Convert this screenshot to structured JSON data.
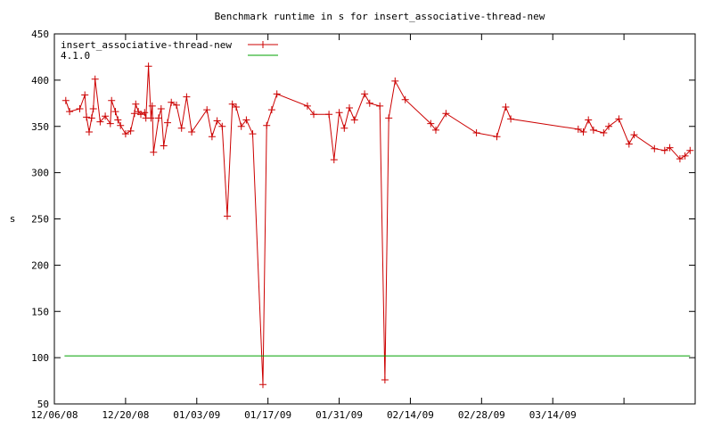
{
  "chart_data": {
    "type": "line",
    "title": "Benchmark runtime in s for insert_associative-thread-new",
    "xlabel": "",
    "ylabel": "s",
    "ylim": [
      50,
      450
    ],
    "yticks": [
      50,
      100,
      150,
      200,
      250,
      300,
      350,
      400,
      450
    ],
    "xlim": [
      "2008-12-06",
      "2009-04-11"
    ],
    "xticks": [
      {
        "date": "2008-12-06",
        "label": "12/06/08"
      },
      {
        "date": "2008-12-20",
        "label": "12/20/08"
      },
      {
        "date": "2009-01-03",
        "label": "01/03/09"
      },
      {
        "date": "2009-01-17",
        "label": "01/17/09"
      },
      {
        "date": "2009-01-31",
        "label": "01/31/09"
      },
      {
        "date": "2009-02-14",
        "label": "02/14/09"
      },
      {
        "date": "2009-02-28",
        "label": "02/28/09"
      },
      {
        "date": "2009-03-14",
        "label": "03/14/09"
      },
      {
        "date": "2009-03-28",
        "label": ""
      },
      {
        "date": "2009-04-11",
        "label": ""
      }
    ],
    "grid": false,
    "legend_position": "top-left",
    "series": [
      {
        "name": "insert_associative-thread-new",
        "color": "#cc0000",
        "marker": "plus",
        "points": [
          [
            "2008-12-08 06:00",
            378
          ],
          [
            "2008-12-09 00:00",
            366
          ],
          [
            "2008-12-11 00:00",
            369
          ],
          [
            "2008-12-12 00:00",
            384
          ],
          [
            "2008-12-12 08:00",
            360
          ],
          [
            "2008-12-12 20:00",
            344
          ],
          [
            "2008-12-13 08:00",
            359
          ],
          [
            "2008-12-13 16:00",
            369
          ],
          [
            "2008-12-14 00:00",
            401
          ],
          [
            "2008-12-15 00:00",
            355
          ],
          [
            "2008-12-16 00:00",
            361
          ],
          [
            "2008-12-17 00:00",
            353
          ],
          [
            "2008-12-17 06:00",
            378
          ],
          [
            "2008-12-18 00:00",
            366
          ],
          [
            "2008-12-18 12:00",
            357
          ],
          [
            "2008-12-19 00:00",
            351
          ],
          [
            "2008-12-20 00:00",
            342
          ],
          [
            "2008-12-21 00:00",
            345
          ],
          [
            "2008-12-21 18:00",
            364
          ],
          [
            "2008-12-22 00:00",
            374
          ],
          [
            "2008-12-22 12:00",
            366
          ],
          [
            "2008-12-23 00:00",
            363
          ],
          [
            "2008-12-23 18:00",
            365
          ],
          [
            "2008-12-24 00:00",
            359
          ],
          [
            "2008-12-24 12:00",
            415
          ],
          [
            "2008-12-25 00:00",
            359
          ],
          [
            "2008-12-25 06:00",
            372
          ],
          [
            "2008-12-25 12:00",
            322
          ],
          [
            "2008-12-26 12:00",
            359
          ],
          [
            "2008-12-27 00:00",
            369
          ],
          [
            "2008-12-27 12:00",
            329
          ],
          [
            "2008-12-28 06:00",
            354
          ],
          [
            "2008-12-29 00:00",
            376
          ],
          [
            "2008-12-30 00:00",
            373
          ],
          [
            "2008-12-31 00:00",
            348
          ],
          [
            "2009-01-01 00:00",
            382
          ],
          [
            "2009-01-02 00:00",
            344
          ],
          [
            "2009-01-05 00:00",
            368
          ],
          [
            "2009-01-06 00:00",
            339
          ],
          [
            "2009-01-07 00:00",
            356
          ],
          [
            "2009-01-08 00:00",
            350
          ],
          [
            "2009-01-09 00:00",
            253
          ],
          [
            "2009-01-10 00:00",
            374
          ],
          [
            "2009-01-10 18:00",
            371
          ],
          [
            "2009-01-11 18:00",
            350
          ],
          [
            "2009-01-12 18:00",
            357
          ],
          [
            "2009-01-14 00:00",
            342
          ],
          [
            "2009-01-16 00:00",
            71
          ],
          [
            "2009-01-16 18:00",
            351
          ],
          [
            "2009-01-17 18:00",
            368
          ],
          [
            "2009-01-18 18:00",
            385
          ],
          [
            "2009-01-24 18:00",
            372
          ],
          [
            "2009-01-26 00:00",
            363
          ],
          [
            "2009-01-29 00:00",
            363
          ],
          [
            "2009-01-30 00:00",
            314
          ],
          [
            "2009-01-31 00:00",
            365
          ],
          [
            "2009-02-01 00:00",
            348
          ],
          [
            "2009-02-02 00:00",
            370
          ],
          [
            "2009-02-03 00:00",
            357
          ],
          [
            "2009-02-05 00:00",
            385
          ],
          [
            "2009-02-06 00:00",
            375
          ],
          [
            "2009-02-08 00:00",
            372
          ],
          [
            "2009-02-09 00:00",
            76
          ],
          [
            "2009-02-09 18:00",
            359
          ],
          [
            "2009-02-11 00:00",
            399
          ],
          [
            "2009-02-13 00:00",
            379
          ],
          [
            "2009-02-18 00:00",
            353
          ],
          [
            "2009-02-19 00:00",
            346
          ],
          [
            "2009-02-21 00:00",
            364
          ],
          [
            "2009-02-27 00:00",
            343
          ],
          [
            "2009-03-03 00:00",
            339
          ],
          [
            "2009-03-04 18:00",
            371
          ],
          [
            "2009-03-05 18:00",
            358
          ],
          [
            "2009-03-19 00:00",
            347
          ],
          [
            "2009-03-20 00:00",
            344
          ],
          [
            "2009-03-21 00:00",
            357
          ],
          [
            "2009-03-22 00:00",
            346
          ],
          [
            "2009-03-24 00:00",
            343
          ],
          [
            "2009-03-25 00:00",
            350
          ],
          [
            "2009-03-27 00:00",
            358
          ],
          [
            "2009-03-29 00:00",
            331
          ],
          [
            "2009-03-30 00:00",
            341
          ],
          [
            "2009-04-03 00:00",
            326
          ],
          [
            "2009-04-05 00:00",
            324
          ],
          [
            "2009-04-06 00:00",
            327
          ],
          [
            "2009-04-08 00:00",
            315
          ],
          [
            "2009-04-09 00:00",
            318
          ],
          [
            "2009-04-10 00:00",
            324
          ]
        ]
      },
      {
        "name": "4.1.0",
        "color": "#00a000",
        "marker": "none",
        "points": [
          [
            "2008-12-08",
            102
          ],
          [
            "2009-04-10",
            102
          ]
        ]
      }
    ]
  }
}
